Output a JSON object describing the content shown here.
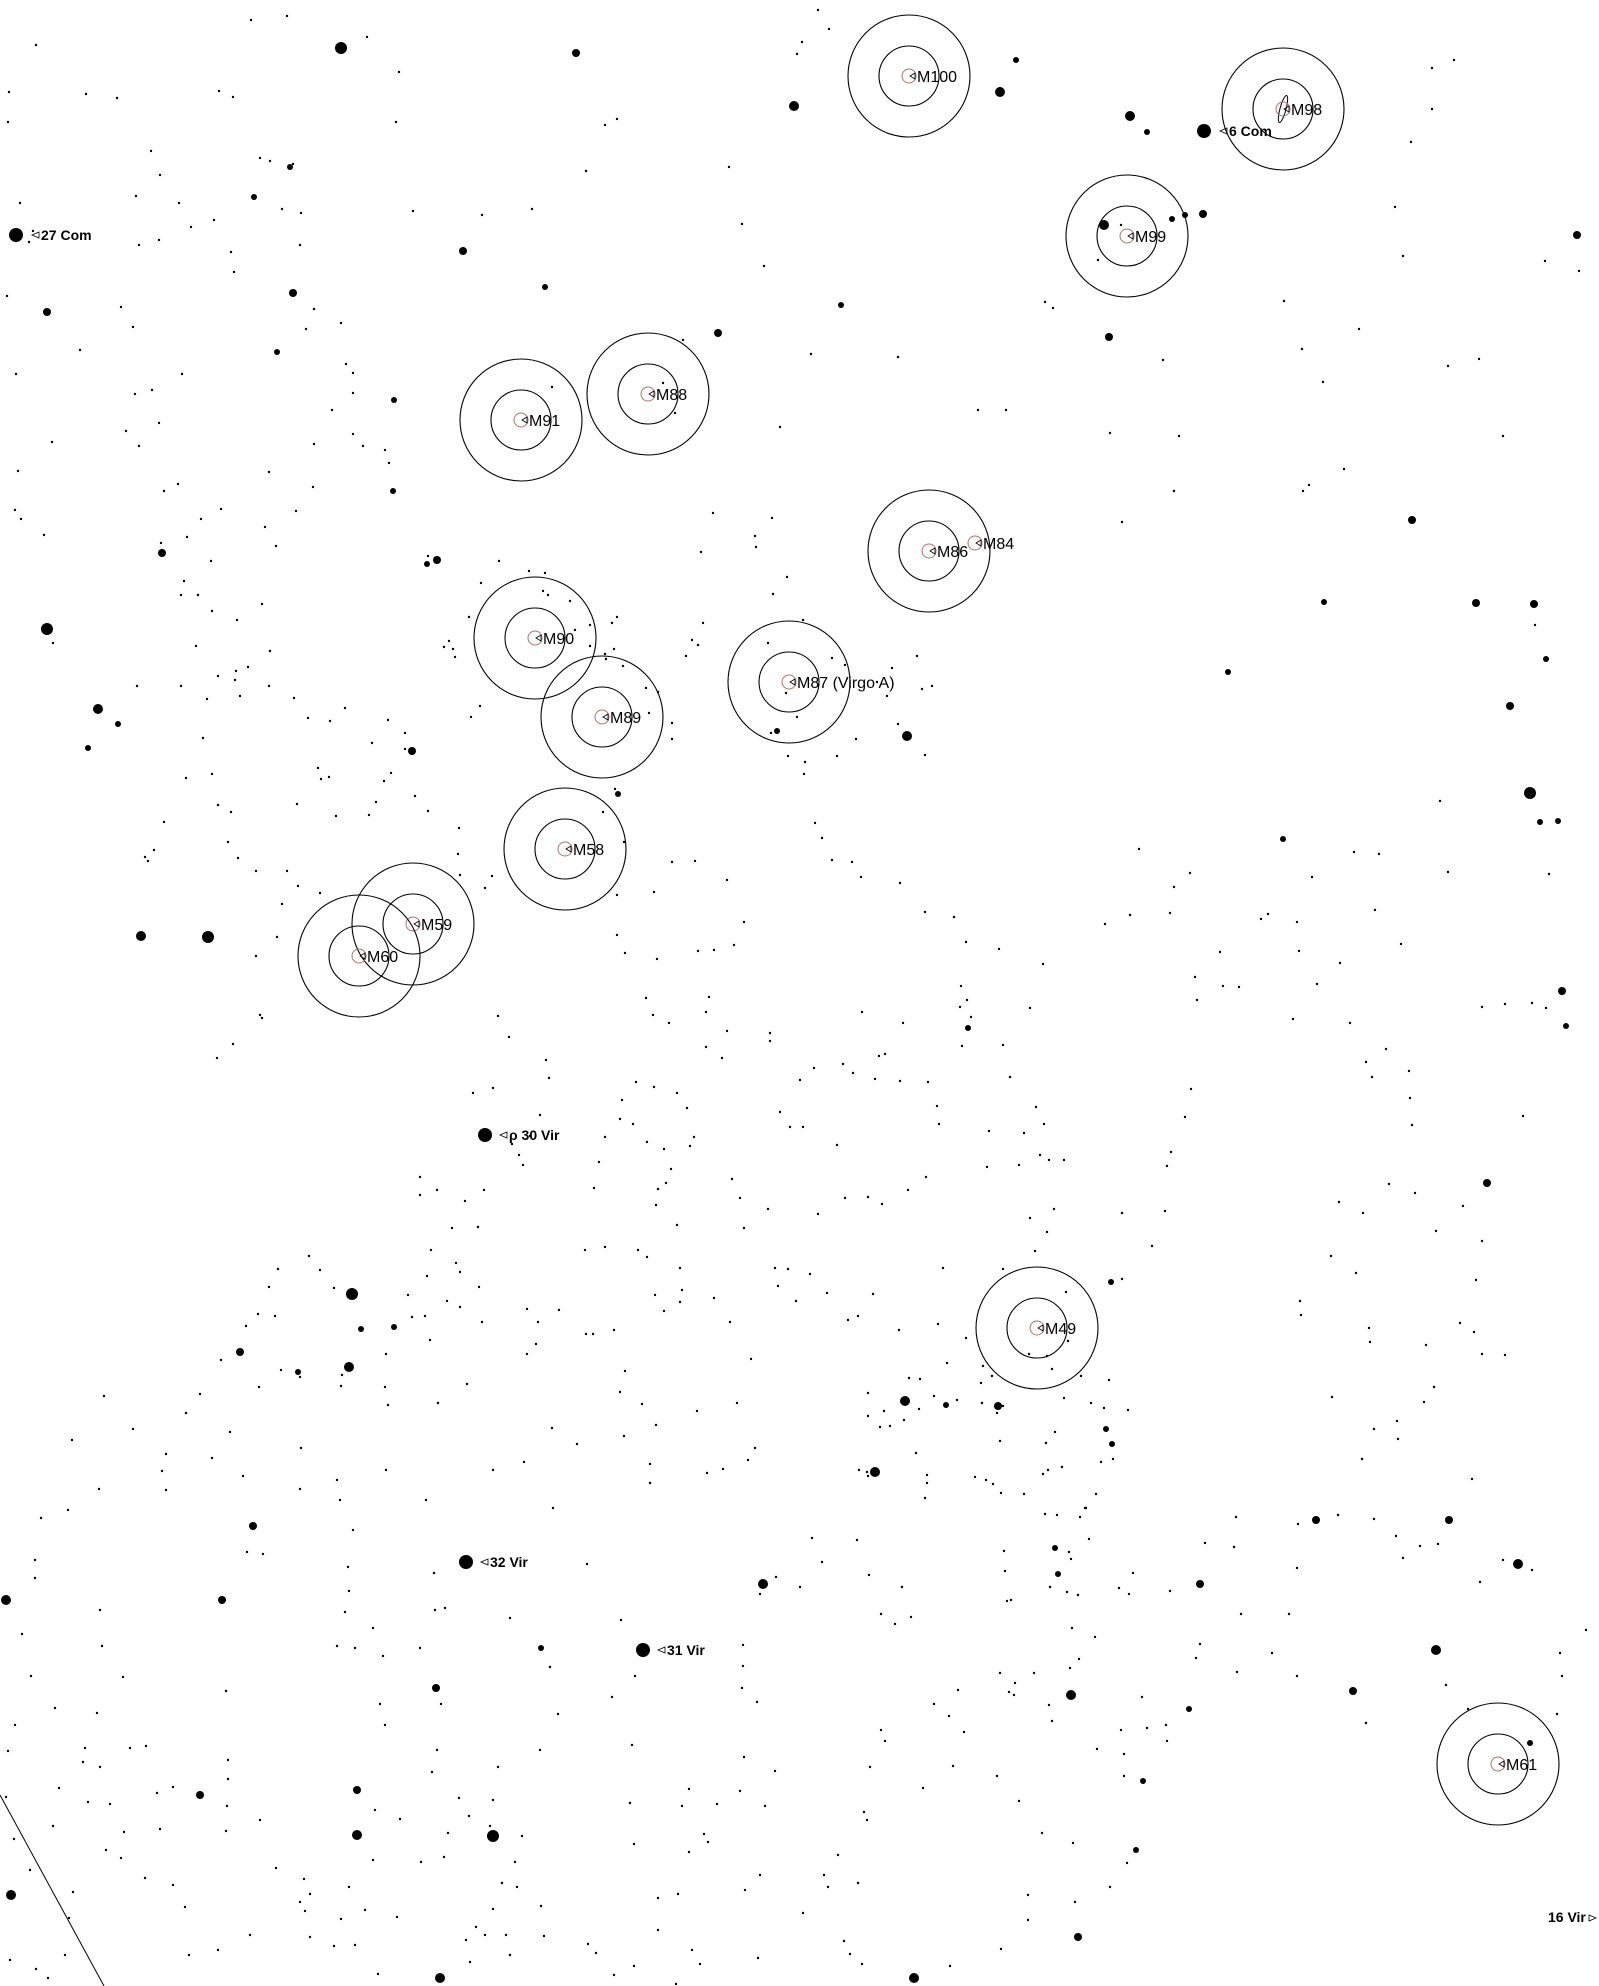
{
  "colors": {
    "background": "#ffffff",
    "ink": "#000000",
    "galaxy_core": "#b07070"
  },
  "galaxies": [
    {
      "label": "M100"
    },
    {
      "label": "M98"
    },
    {
      "label": "M99"
    },
    {
      "label": "M88"
    },
    {
      "label": "M91"
    },
    {
      "label": "M86"
    },
    {
      "label": "M84"
    },
    {
      "label": "M90"
    },
    {
      "label": "M87 (Virgo A)"
    },
    {
      "label": "M89"
    },
    {
      "label": "M58"
    },
    {
      "label": "M59"
    },
    {
      "label": "M60"
    },
    {
      "label": "M49"
    },
    {
      "label": "M61"
    }
  ],
  "named_stars": [
    {
      "label": "27 Com"
    },
    {
      "label": "6 Com"
    },
    {
      "label": "ρ 30 Vir"
    },
    {
      "label": "32 Vir"
    },
    {
      "label": "31 Vir"
    },
    {
      "label": "16 Vir"
    }
  ]
}
